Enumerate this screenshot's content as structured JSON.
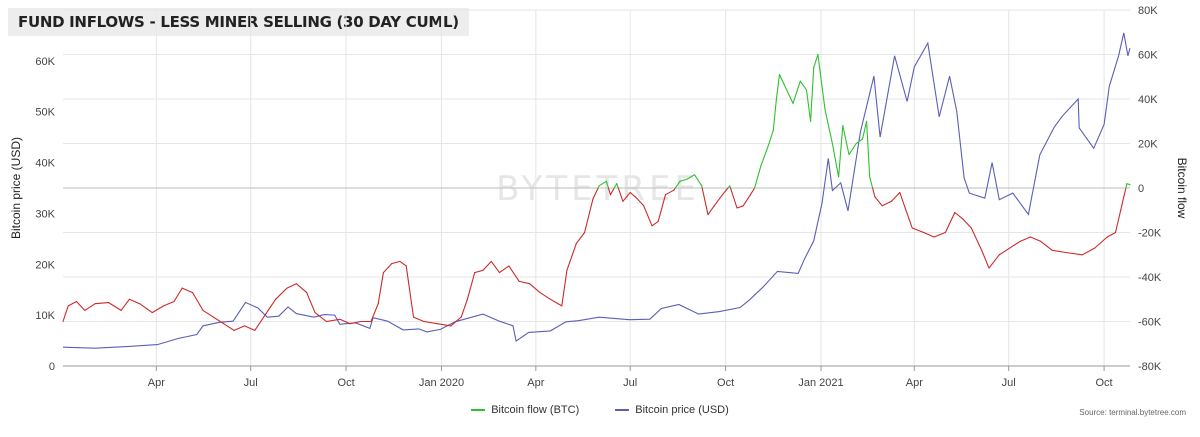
{
  "chart_data": {
    "type": "line",
    "title": "FUND INFLOWS - LESS MINER SELLING (30 DAY CUML)",
    "source": "Source: terminal.bytetree.com",
    "watermark": "BYTETREE",
    "y_left": {
      "label": "Bitcoin price (USD)",
      "range": [
        0,
        70000
      ],
      "ticks": [
        "0",
        "10K",
        "20K",
        "30K",
        "40K",
        "50K",
        "60K"
      ]
    },
    "y_right": {
      "label": "Bitcoin flow",
      "range": [
        -80000,
        80000
      ],
      "ticks": [
        "-80K",
        "-60K",
        "-40K",
        "-20K",
        "0",
        "20K",
        "40K",
        "60K",
        "80K"
      ]
    },
    "x_axis": {
      "range": [
        "2019-01-01",
        "2021-10-26"
      ],
      "ticks": [
        {
          "date": "2019-04-01",
          "label": "Apr"
        },
        {
          "date": "2019-07-01",
          "label": "Jul"
        },
        {
          "date": "2019-10-01",
          "label": "Oct"
        },
        {
          "date": "2020-01-01",
          "label": "Jan 2020"
        },
        {
          "date": "2020-04-01",
          "label": "Apr"
        },
        {
          "date": "2020-07-01",
          "label": "Jul"
        },
        {
          "date": "2020-10-01",
          "label": "Oct"
        },
        {
          "date": "2021-01-01",
          "label": "Jan 2021"
        },
        {
          "date": "2021-04-01",
          "label": "Apr"
        },
        {
          "date": "2021-07-01",
          "label": "Jul"
        },
        {
          "date": "2021-10-01",
          "label": "Oct"
        }
      ]
    },
    "grid": true,
    "legend_position": "bottom-center",
    "colors": {
      "flow_positive": "#2fc12f",
      "flow_negative": "#cc2a2a",
      "price": "#5a5fb5"
    },
    "series": [
      {
        "name": "Bitcoin flow (BTC)",
        "axis": "right",
        "points": [
          [
            "2019-01-01",
            -60000
          ],
          [
            "2019-01-06",
            -53000
          ],
          [
            "2019-01-14",
            -51000
          ],
          [
            "2019-01-22",
            -55000
          ],
          [
            "2019-02-01",
            -52000
          ],
          [
            "2019-02-14",
            -51500
          ],
          [
            "2019-02-26",
            -55000
          ],
          [
            "2019-03-06",
            -50000
          ],
          [
            "2019-03-16",
            -52000
          ],
          [
            "2019-03-28",
            -56000
          ],
          [
            "2019-04-08",
            -53000
          ],
          [
            "2019-04-18",
            -51000
          ],
          [
            "2019-04-26",
            -45000
          ],
          [
            "2019-05-06",
            -47000
          ],
          [
            "2019-05-16",
            -55000
          ],
          [
            "2019-05-26",
            -58000
          ],
          [
            "2019-06-05",
            -61000
          ],
          [
            "2019-06-15",
            -64000
          ],
          [
            "2019-06-25",
            -62000
          ],
          [
            "2019-07-05",
            -64000
          ],
          [
            "2019-07-15",
            -57000
          ],
          [
            "2019-07-25",
            -50000
          ],
          [
            "2019-08-05",
            -45000
          ],
          [
            "2019-08-14",
            -43000
          ],
          [
            "2019-08-24",
            -47000
          ],
          [
            "2019-09-01",
            -56000
          ],
          [
            "2019-09-12",
            -60000
          ],
          [
            "2019-09-25",
            -59000
          ],
          [
            "2019-10-05",
            -61000
          ],
          [
            "2019-10-15",
            -60000
          ],
          [
            "2019-10-25",
            -60000
          ],
          [
            "2019-11-01",
            -52000
          ],
          [
            "2019-11-06",
            -38000
          ],
          [
            "2019-11-14",
            -34000
          ],
          [
            "2019-11-22",
            -33000
          ],
          [
            "2019-11-28",
            -35000
          ],
          [
            "2019-12-05",
            -58000
          ],
          [
            "2019-12-15",
            -60000
          ],
          [
            "2019-12-28",
            -61000
          ],
          [
            "2020-01-10",
            -62000
          ],
          [
            "2020-01-20",
            -58000
          ],
          [
            "2020-01-26",
            -50000
          ],
          [
            "2020-02-02",
            -38000
          ],
          [
            "2020-02-10",
            -37000
          ],
          [
            "2020-02-18",
            -33000
          ],
          [
            "2020-02-26",
            -38000
          ],
          [
            "2020-03-06",
            -35000
          ],
          [
            "2020-03-16",
            -42000
          ],
          [
            "2020-03-26",
            -43000
          ],
          [
            "2020-04-05",
            -47000
          ],
          [
            "2020-04-15",
            -50000
          ],
          [
            "2020-04-26",
            -53000
          ],
          [
            "2020-05-01",
            -37000
          ],
          [
            "2020-05-10",
            -25000
          ],
          [
            "2020-05-18",
            -20000
          ],
          [
            "2020-05-26",
            -5000
          ],
          [
            "2020-06-01",
            1000
          ],
          [
            "2020-06-08",
            3000
          ],
          [
            "2020-06-12",
            -3000
          ],
          [
            "2020-06-18",
            2000
          ],
          [
            "2020-06-24",
            -6000
          ],
          [
            "2020-07-01",
            -2000
          ],
          [
            "2020-07-06",
            -4000
          ],
          [
            "2020-07-14",
            -8000
          ],
          [
            "2020-07-22",
            -17000
          ],
          [
            "2020-07-28",
            -15000
          ],
          [
            "2020-08-04",
            -3000
          ],
          [
            "2020-08-12",
            -1000
          ],
          [
            "2020-08-18",
            3000
          ],
          [
            "2020-08-25",
            4000
          ],
          [
            "2020-09-01",
            6000
          ],
          [
            "2020-09-08",
            1000
          ],
          [
            "2020-09-14",
            -12000
          ],
          [
            "2020-09-20",
            -8000
          ],
          [
            "2020-09-28",
            -3000
          ],
          [
            "2020-10-05",
            1000
          ],
          [
            "2020-10-12",
            -9000
          ],
          [
            "2020-10-18",
            -8000
          ],
          [
            "2020-10-25",
            -3000
          ],
          [
            "2020-10-29",
            0
          ],
          [
            "2020-11-04",
            10000
          ],
          [
            "2020-11-12",
            20000
          ],
          [
            "2020-11-16",
            26000
          ],
          [
            "2020-11-19",
            40000
          ],
          [
            "2020-11-22",
            51000
          ],
          [
            "2020-11-28",
            45000
          ],
          [
            "2020-12-05",
            38000
          ],
          [
            "2020-12-12",
            48000
          ],
          [
            "2020-12-18",
            44000
          ],
          [
            "2020-12-22",
            30000
          ],
          [
            "2020-12-25",
            54000
          ],
          [
            "2020-12-29",
            60000
          ],
          [
            "2021-01-05",
            35000
          ],
          [
            "2021-01-12",
            20000
          ],
          [
            "2021-01-18",
            5000
          ],
          [
            "2021-01-22",
            28000
          ],
          [
            "2021-01-28",
            15000
          ],
          [
            "2021-02-04",
            20000
          ],
          [
            "2021-02-10",
            22000
          ],
          [
            "2021-02-14",
            30000
          ],
          [
            "2021-02-17",
            5000
          ],
          [
            "2021-02-22",
            -4000
          ],
          [
            "2021-03-01",
            -8000
          ],
          [
            "2021-03-10",
            -6000
          ],
          [
            "2021-03-18",
            -2000
          ],
          [
            "2021-03-24",
            -10000
          ],
          [
            "2021-03-30",
            -18000
          ],
          [
            "2021-04-10",
            -20000
          ],
          [
            "2021-04-20",
            -22000
          ],
          [
            "2021-05-01",
            -20000
          ],
          [
            "2021-05-10",
            -11000
          ],
          [
            "2021-05-18",
            -14000
          ],
          [
            "2021-05-26",
            -18000
          ],
          [
            "2021-06-05",
            -28000
          ],
          [
            "2021-06-12",
            -36000
          ],
          [
            "2021-06-22",
            -30000
          ],
          [
            "2021-07-02",
            -27000
          ],
          [
            "2021-07-12",
            -24000
          ],
          [
            "2021-07-22",
            -22000
          ],
          [
            "2021-08-01",
            -24000
          ],
          [
            "2021-08-12",
            -28000
          ],
          [
            "2021-08-25",
            -29000
          ],
          [
            "2021-09-10",
            -30000
          ],
          [
            "2021-09-22",
            -27000
          ],
          [
            "2021-10-04",
            -22000
          ],
          [
            "2021-10-12",
            -20000
          ],
          [
            "2021-10-17",
            -10000
          ],
          [
            "2021-10-20",
            -4000
          ],
          [
            "2021-10-23",
            2000
          ],
          [
            "2021-10-26",
            1500
          ]
        ]
      },
      {
        "name": "Bitcoin price (USD)",
        "axis": "left",
        "points": [
          [
            "2019-01-01",
            3700
          ],
          [
            "2019-02-01",
            3500
          ],
          [
            "2019-03-01",
            3800
          ],
          [
            "2019-04-02",
            4200
          ],
          [
            "2019-04-22",
            5400
          ],
          [
            "2019-05-10",
            6200
          ],
          [
            "2019-05-16",
            7900
          ],
          [
            "2019-06-01",
            8600
          ],
          [
            "2019-06-14",
            8800
          ],
          [
            "2019-06-26",
            12500
          ],
          [
            "2019-07-08",
            11400
          ],
          [
            "2019-07-17",
            9600
          ],
          [
            "2019-07-28",
            9800
          ],
          [
            "2019-08-06",
            11600
          ],
          [
            "2019-08-14",
            10300
          ],
          [
            "2019-08-31",
            9600
          ],
          [
            "2019-09-10",
            10100
          ],
          [
            "2019-09-20",
            10000
          ],
          [
            "2019-09-25",
            8200
          ],
          [
            "2019-10-10",
            8500
          ],
          [
            "2019-10-24",
            7400
          ],
          [
            "2019-10-27",
            9500
          ],
          [
            "2019-11-10",
            8800
          ],
          [
            "2019-11-25",
            7100
          ],
          [
            "2019-12-10",
            7300
          ],
          [
            "2019-12-18",
            6700
          ],
          [
            "2019-12-31",
            7200
          ],
          [
            "2020-01-14",
            8700
          ],
          [
            "2020-02-10",
            10200
          ],
          [
            "2020-02-26",
            8800
          ],
          [
            "2020-03-10",
            7900
          ],
          [
            "2020-03-13",
            4900
          ],
          [
            "2020-03-25",
            6600
          ],
          [
            "2020-04-15",
            6900
          ],
          [
            "2020-04-30",
            8700
          ],
          [
            "2020-05-12",
            8900
          ],
          [
            "2020-06-01",
            9600
          ],
          [
            "2020-06-30",
            9100
          ],
          [
            "2020-07-20",
            9200
          ],
          [
            "2020-07-31",
            11300
          ],
          [
            "2020-08-17",
            12100
          ],
          [
            "2020-09-05",
            10200
          ],
          [
            "2020-09-25",
            10700
          ],
          [
            "2020-10-15",
            11500
          ],
          [
            "2020-10-24",
            13000
          ],
          [
            "2020-11-06",
            15500
          ],
          [
            "2020-11-20",
            18600
          ],
          [
            "2020-12-10",
            18200
          ],
          [
            "2020-12-16",
            21000
          ],
          [
            "2020-12-25",
            24600
          ],
          [
            "2021-01-02",
            32000
          ],
          [
            "2021-01-08",
            40800
          ],
          [
            "2021-01-12",
            34500
          ],
          [
            "2021-01-20",
            36000
          ],
          [
            "2021-01-27",
            30500
          ],
          [
            "2021-02-08",
            46000
          ],
          [
            "2021-02-21",
            57000
          ],
          [
            "2021-02-27",
            45000
          ],
          [
            "2021-03-13",
            61000
          ],
          [
            "2021-03-25",
            52000
          ],
          [
            "2021-04-01",
            58800
          ],
          [
            "2021-04-14",
            63500
          ],
          [
            "2021-04-25",
            49000
          ],
          [
            "2021-05-05",
            57000
          ],
          [
            "2021-05-12",
            50000
          ],
          [
            "2021-05-19",
            37000
          ],
          [
            "2021-05-24",
            34000
          ],
          [
            "2021-06-08",
            33000
          ],
          [
            "2021-06-15",
            40000
          ],
          [
            "2021-06-22",
            32700
          ],
          [
            "2021-07-05",
            34000
          ],
          [
            "2021-07-20",
            29800
          ],
          [
            "2021-07-31",
            41500
          ],
          [
            "2021-08-14",
            47000
          ],
          [
            "2021-08-22",
            49200
          ],
          [
            "2021-09-06",
            52500
          ],
          [
            "2021-09-07",
            46800
          ],
          [
            "2021-09-21",
            42800
          ],
          [
            "2021-10-01",
            47500
          ],
          [
            "2021-10-06",
            55000
          ],
          [
            "2021-10-15",
            61000
          ],
          [
            "2021-10-20",
            65500
          ],
          [
            "2021-10-24",
            61000
          ],
          [
            "2021-10-26",
            62500
          ]
        ]
      }
    ]
  }
}
